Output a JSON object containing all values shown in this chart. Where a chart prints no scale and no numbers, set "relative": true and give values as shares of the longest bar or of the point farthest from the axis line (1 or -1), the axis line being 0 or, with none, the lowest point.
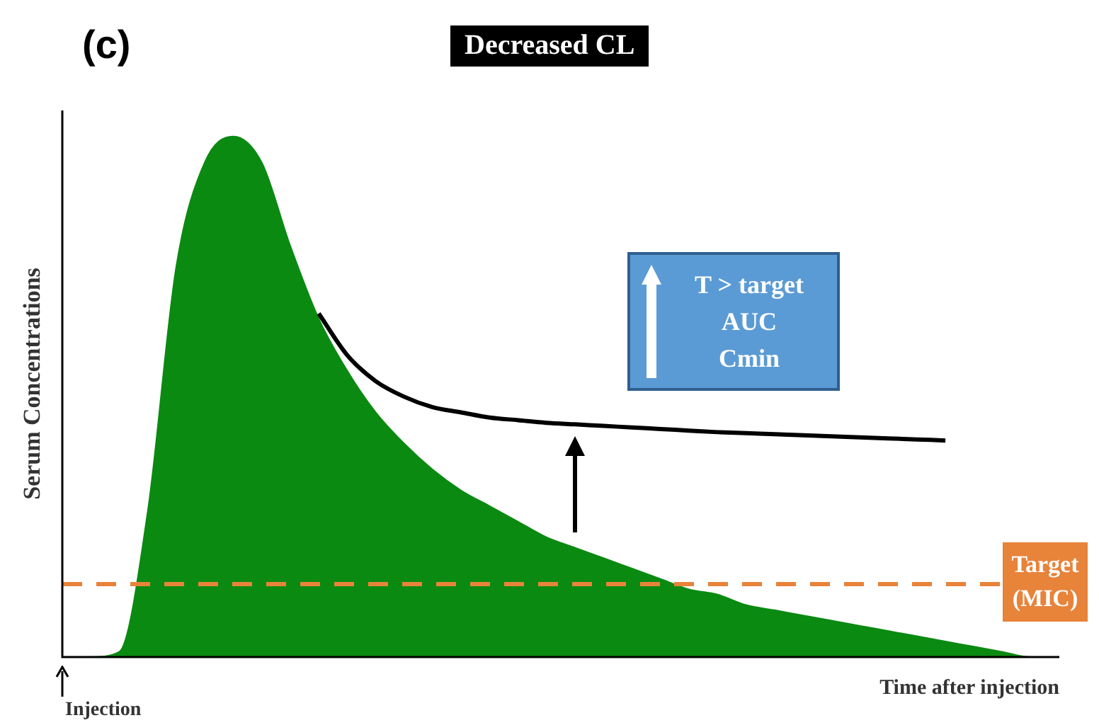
{
  "chart_data": {
    "type": "area",
    "title": "Decreased CL",
    "xlabel": "Time after injection",
    "ylabel": "Serum Concentrations",
    "relative": true,
    "categories": [
      null,
      null,
      null,
      null,
      null,
      null,
      null,
      null,
      null,
      null,
      null,
      null,
      null,
      null,
      null,
      null,
      null,
      null,
      null,
      null,
      null,
      null,
      null,
      null,
      null,
      null,
      null,
      null,
      null,
      null,
      null,
      null,
      null,
      null,
      null,
      null
    ],
    "series": [
      {
        "color": "#0b8a12",
        "values": [
          0,
          0,
          0.01,
          0.28,
          0.75,
          0.95,
          1,
          0.95,
          0.79,
          0.65,
          0.55,
          0.47,
          0.41,
          0.36,
          0.32,
          0.29,
          0.26,
          0.23,
          0.21,
          0.19,
          0.17,
          0.15,
          0.13,
          0.12,
          0.1,
          0.09,
          0.08,
          0.07,
          0.06,
          0.05,
          0.04,
          0.03,
          0.02,
          0.01,
          0,
          0
        ]
      },
      {
        "type": "line",
        "color": "#000000",
        "values": [
          null,
          null,
          null,
          null,
          null,
          null,
          null,
          null,
          null,
          0.66,
          0.58,
          0.53,
          0.5,
          0.48,
          0.47,
          0.46,
          0.455,
          0.45,
          0.447,
          0.444,
          0.441,
          0.438,
          0.435,
          0.432,
          0.43,
          0.428,
          0.426,
          0.424,
          0.422,
          0.42,
          0.418,
          0.416,
          null,
          null,
          null,
          null
        ]
      }
    ],
    "ref_lines": [
      {
        "axis": "y",
        "value": 0.14,
        "label": "Target (MIC)",
        "color": "#e8833a",
        "line_style": "dashed"
      }
    ],
    "annotations": [
      "(c)",
      "T > target\nAUC\nCmin",
      "Injection"
    ],
    "legend": false
  }
}
